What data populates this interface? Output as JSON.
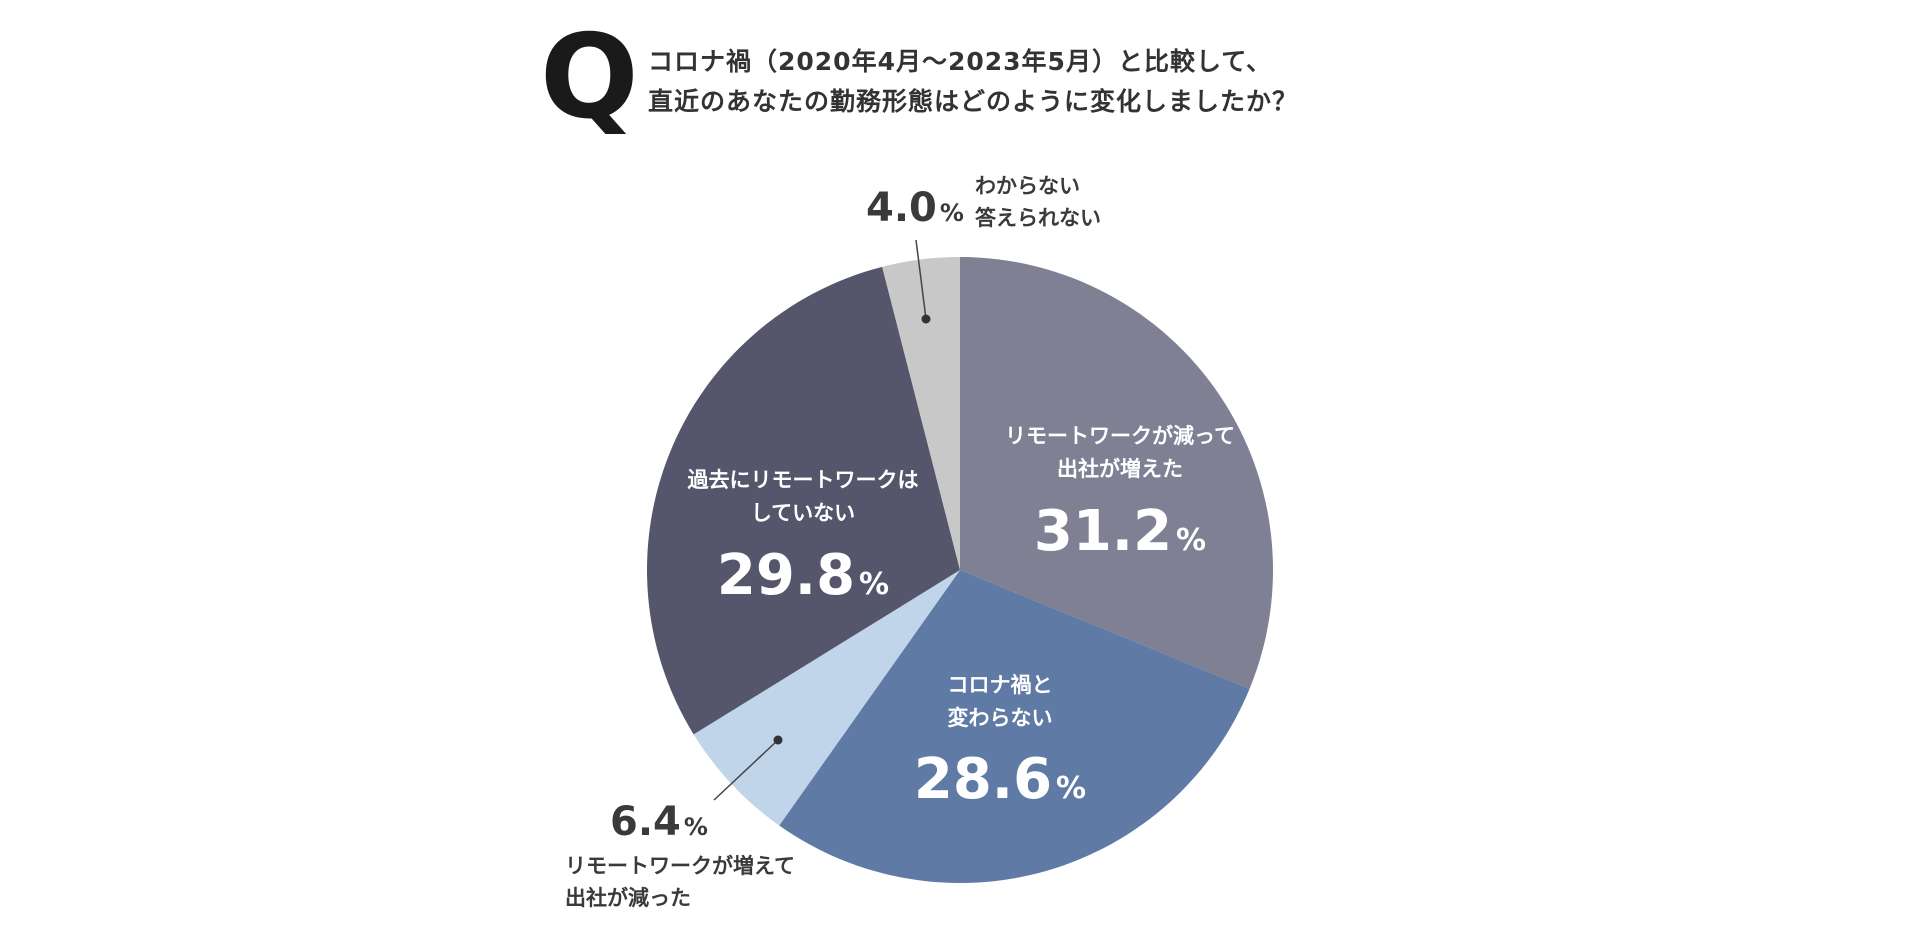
{
  "question": {
    "mark": "Q",
    "line1": "コロナ禍（2020年4月〜2023年5月）と比較して、",
    "line2": "直近のあなたの勤務形態はどのように変化しましたか？"
  },
  "chart_data": {
    "type": "pie",
    "title": "コロナ禍（2020年4月〜2023年5月）と比較して、直近のあなたの勤務形態はどのように変化しましたか？",
    "unit": "%",
    "slices": [
      {
        "label_lines": [
          "リモートワークが減って",
          "出社が増えた"
        ],
        "value": 31.2,
        "value_text": "31.2",
        "color": "#7f8093",
        "label_position": "inside"
      },
      {
        "label_lines": [
          "コロナ禍と",
          "変わらない"
        ],
        "value": 28.6,
        "value_text": "28.6",
        "color": "#5f7aa4",
        "label_position": "inside"
      },
      {
        "label_lines": [
          "リモートワークが増えて",
          "出社が減った"
        ],
        "value": 6.4,
        "value_text": "6.4",
        "color": "#c0d5e9",
        "label_position": "outside"
      },
      {
        "label_lines": [
          "過去にリモートワークは",
          "していない"
        ],
        "value": 29.8,
        "value_text": "29.8",
        "color": "#55566b",
        "label_position": "inside"
      },
      {
        "label_lines": [
          "わからない",
          "答えられない"
        ],
        "value": 4.0,
        "value_text": "4.0",
        "color": "#c8c8c8",
        "label_position": "outside"
      }
    ]
  }
}
